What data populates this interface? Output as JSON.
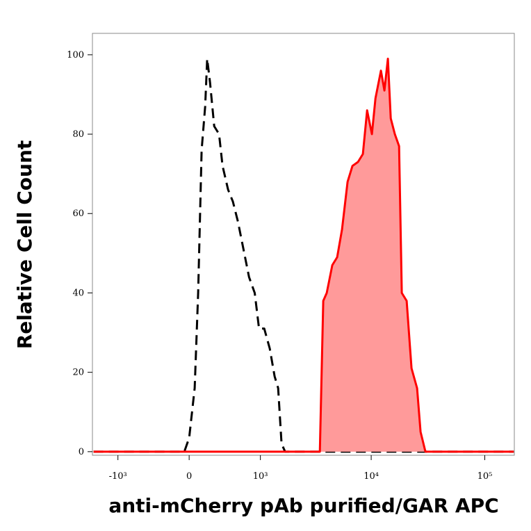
{
  "chart_data": {
    "type": "histogram-overlay",
    "x_label": "anti-mCherry pAb purified/GAR APC",
    "y_label": "Relative Cell Count",
    "x_scale": "biexponential",
    "x": [
      -1700,
      -600,
      -49,
      0,
      56,
      92,
      128,
      165,
      187,
      218,
      265,
      322,
      365,
      437,
      504,
      578,
      668,
      767,
      878,
      970,
      1090,
      1232,
      1369,
      1476,
      1589,
      1711,
      3515,
      3770,
      4050,
      4535,
      5010,
      5530,
      6190,
      6835,
      7655,
      8450,
      9200,
      10145,
      10895,
      12190,
      13085,
      14035,
      14860,
      16160,
      17595,
      18610,
      20525,
      22660,
      25370,
      27220,
      30050,
      180000
    ],
    "series": [
      {
        "color": "#000000",
        "dashed": true,
        "values": [
          0,
          0,
          0,
          3.5,
          16,
          40,
          76,
          87,
          99,
          93,
          82,
          80,
          72,
          66,
          63,
          58,
          51,
          44,
          40,
          31,
          31,
          26,
          19,
          16,
          2,
          0,
          0,
          0,
          0,
          0,
          0,
          0,
          0,
          0,
          0,
          0,
          0,
          0,
          0,
          0,
          0,
          0,
          0,
          0,
          0,
          0,
          0,
          0,
          0,
          0,
          0,
          0
        ]
      },
      {
        "color": "#ff0000",
        "fill_color": "#ff9a9a",
        "values": [
          0,
          0,
          0,
          0,
          0,
          0,
          0,
          0,
          0,
          0,
          0,
          0,
          0,
          0,
          0,
          0,
          0,
          0,
          0,
          0,
          0,
          0,
          0,
          0,
          0,
          0,
          0,
          38,
          40,
          47,
          49,
          56,
          68,
          72,
          73,
          75,
          86,
          80,
          89,
          96,
          91,
          99,
          84,
          80,
          77,
          40,
          38,
          21,
          16,
          5,
          0,
          0
        ]
      }
    ],
    "xlim": [
      -1740,
      182000
    ],
    "xticks": [
      {
        "value": -1000,
        "label": "-10³"
      },
      0,
      {
        "value": 1000,
        "label": "10³"
      },
      {
        "value": 10000,
        "label": "10⁴"
      },
      {
        "value": 100000,
        "label": "10⁵"
      }
    ],
    "ylim": [
      -0.9,
      105.4
    ],
    "yticks": [
      0,
      20,
      40,
      60,
      80,
      100
    ]
  }
}
